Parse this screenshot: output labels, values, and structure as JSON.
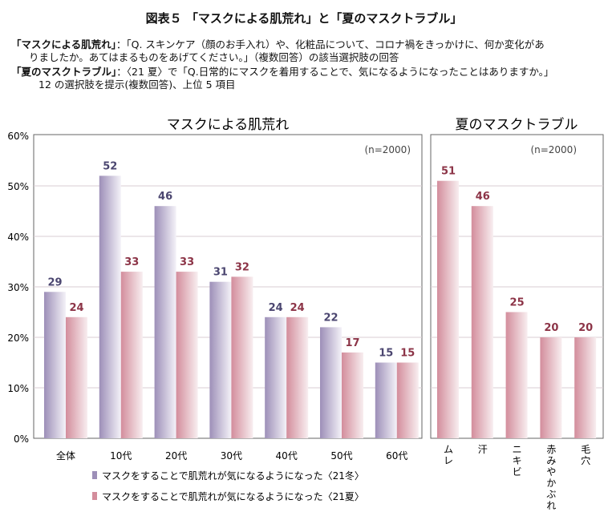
{
  "title": "図表５ 「マスクによる肌荒れ」と「夏のマスクトラブル」",
  "notes": [
    {
      "bold": "「マスクによる肌荒れ」",
      "text": "：「Q. スキンケア（顔のお手入れ）や、化粧品について、コロナ禍をきっかけに、何か変化があ",
      "cont": "りましたか。あてはまるものをあげてください。」（複数回答）の該当選択肢の回答"
    },
    {
      "bold": "「夏のマスクトラブル」",
      "text": "：〈21 夏〉で「Q.日常的にマスクを着用することで、気になるようになったことはありますか。」",
      "cont": "12 の選択肢を提示(複数回答)、上位 5 項目"
    }
  ],
  "colors": {
    "winter": "#9d8fb8",
    "summer": "#d38d9c",
    "winter_label": "#4b4670",
    "summer_label": "#8c3447"
  },
  "chart_data": [
    {
      "type": "bar",
      "title": "マスクによる肌荒れ",
      "annotation": "(n=2000)",
      "categories": [
        "全体",
        "10代",
        "20代",
        "30代",
        "40代",
        "50代",
        "60代"
      ],
      "series": [
        {
          "name": "マスクをすることで肌荒れが気になるようになった〈21冬〉",
          "values": [
            29,
            52,
            46,
            31,
            24,
            22,
            15
          ]
        },
        {
          "name": "マスクをすることで肌荒れが気になるようになった〈21夏〉",
          "values": [
            24,
            33,
            33,
            32,
            24,
            17,
            15
          ]
        }
      ],
      "yticks": [
        "0%",
        "10%",
        "20%",
        "30%",
        "40%",
        "50%",
        "60%"
      ],
      "ylim": [
        0,
        60
      ],
      "grid": true,
      "legend": "bottom"
    },
    {
      "type": "bar",
      "title": "夏のマスクトラブル",
      "annotation": "(n=2000)",
      "categories": [
        "ムレ",
        "汗",
        "ニキビ",
        "赤みやかぶれ",
        "毛穴"
      ],
      "values": [
        51,
        46,
        25,
        20,
        20
      ],
      "ylim": [
        0,
        60
      ],
      "grid": true
    }
  ]
}
